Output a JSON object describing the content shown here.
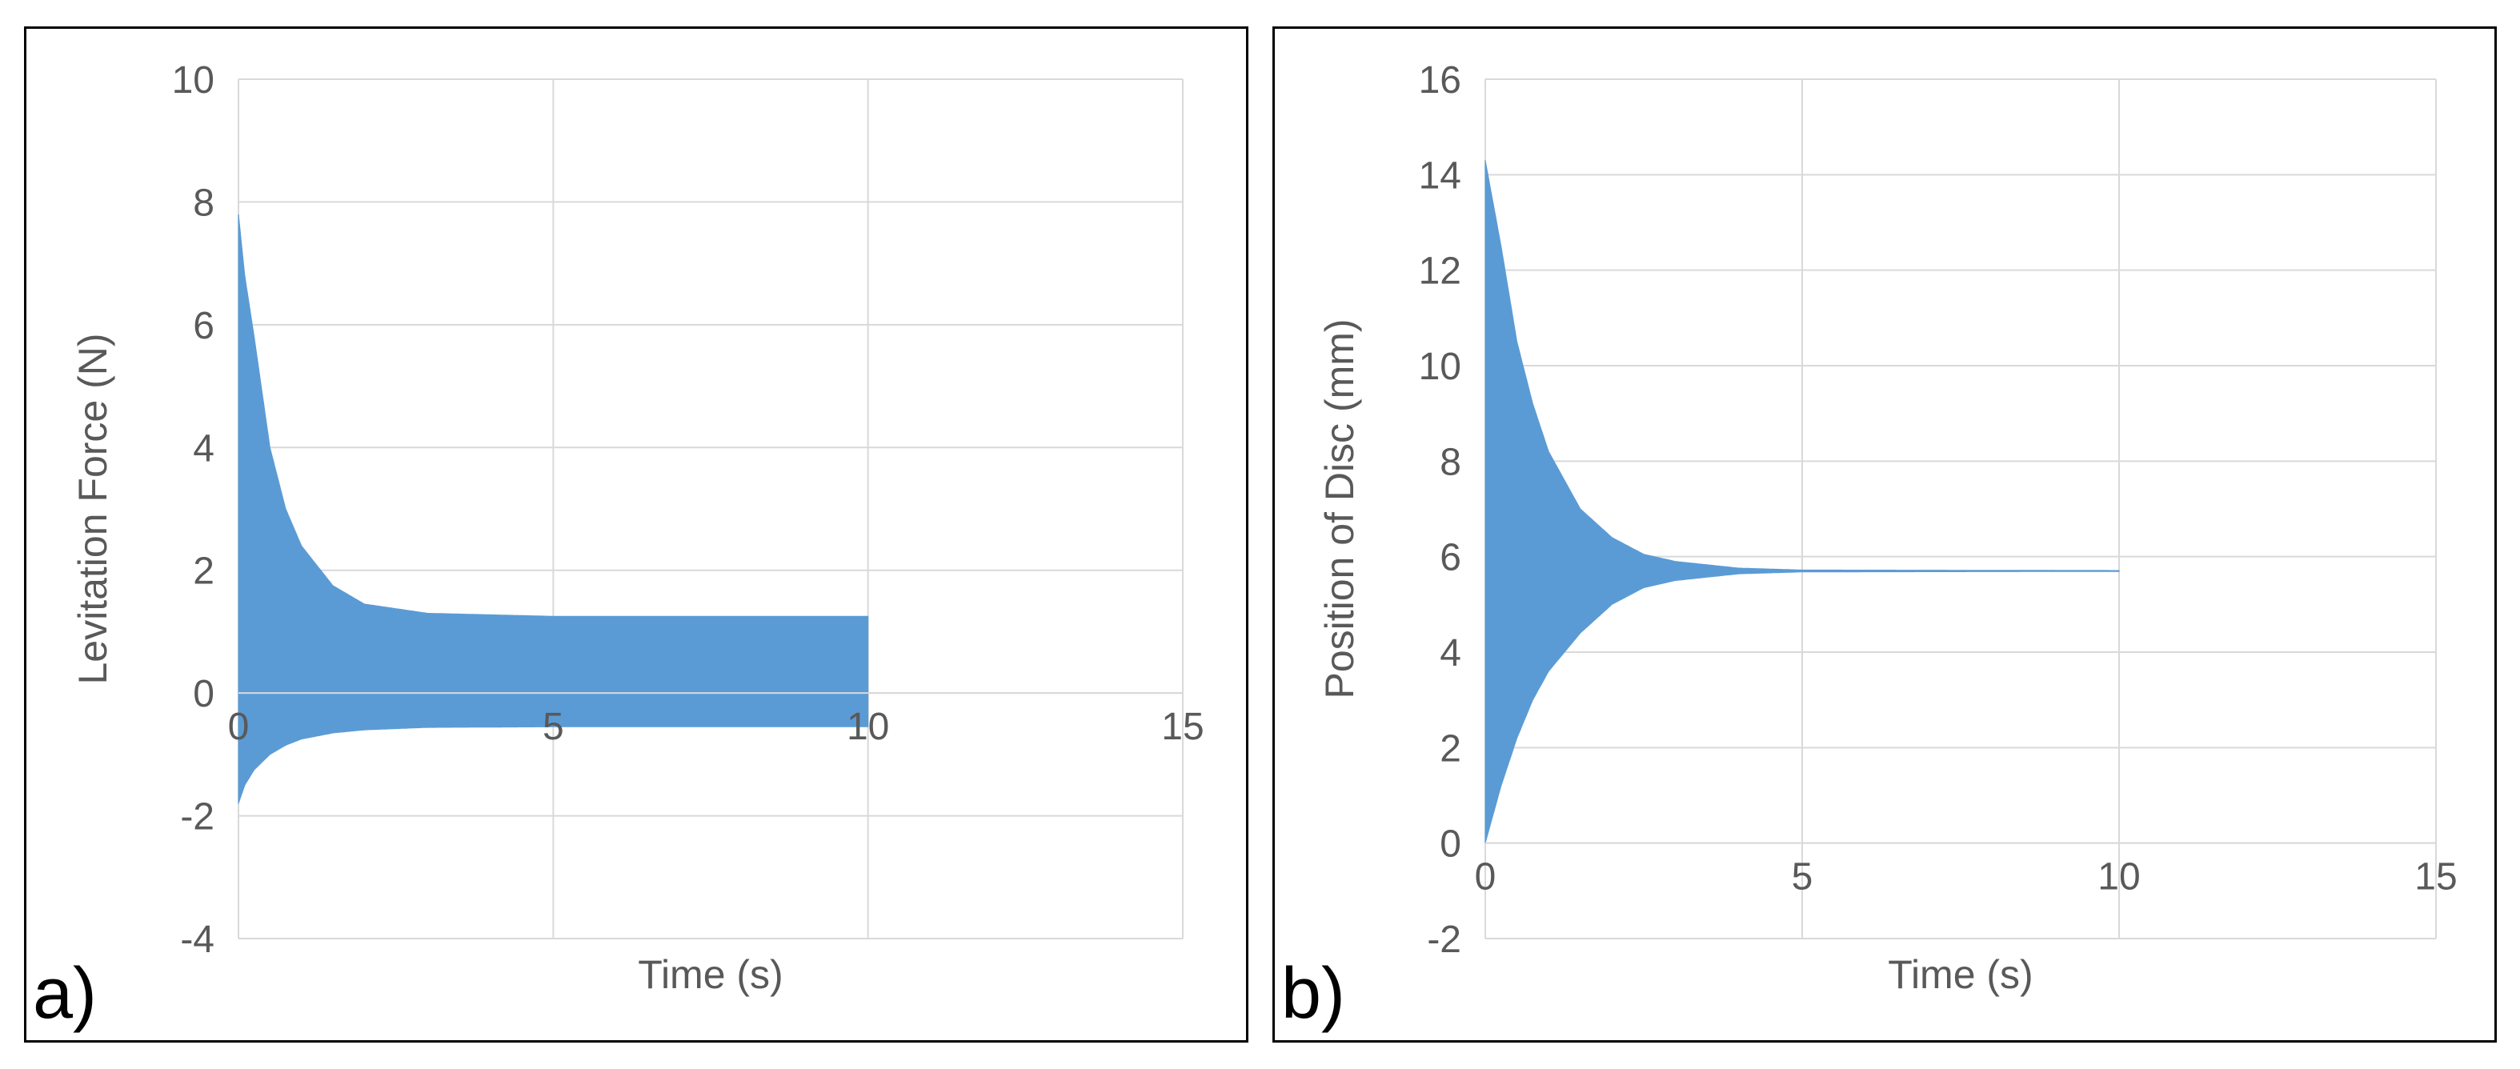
{
  "chart_data": [
    {
      "type": "area",
      "panel_label": "a)",
      "xlabel": "Time (s)",
      "ylabel": "Levitation Force (N)",
      "xlim": [
        0,
        15
      ],
      "ylim": [
        -4,
        10
      ],
      "xticks": [
        "0",
        "5",
        "10",
        "15"
      ],
      "yticks": [
        "-4",
        "-2",
        "0",
        "2",
        "4",
        "6",
        "8",
        "10"
      ],
      "grid": true,
      "series": [
        {
          "name": "Levitation Force",
          "color": "#5b9bd5",
          "x_end": 10,
          "steady_upper": 1.25,
          "steady_lower": -0.55,
          "envelope": [
            {
              "t": 0.0,
              "upper": 7.8,
              "lower": -1.8
            },
            {
              "t": 0.1,
              "upper": 6.8,
              "lower": -1.5
            },
            {
              "t": 0.25,
              "upper": 5.8,
              "lower": -1.25
            },
            {
              "t": 0.5,
              "upper": 4.0,
              "lower": -1.0
            },
            {
              "t": 0.75,
              "upper": 3.0,
              "lower": -0.85
            },
            {
              "t": 1.0,
              "upper": 2.4,
              "lower": -0.75
            },
            {
              "t": 1.5,
              "upper": 1.75,
              "lower": -0.65
            },
            {
              "t": 2.0,
              "upper": 1.45,
              "lower": -0.6
            },
            {
              "t": 3.0,
              "upper": 1.3,
              "lower": -0.56
            },
            {
              "t": 5.0,
              "upper": 1.25,
              "lower": -0.55
            },
            {
              "t": 10.0,
              "upper": 1.25,
              "lower": -0.55
            }
          ]
        }
      ]
    },
    {
      "type": "area",
      "panel_label": "b)",
      "xlabel": "Time (s)",
      "ylabel": "Position of Disc (mm)",
      "xlim": [
        0,
        15
      ],
      "ylim": [
        -2,
        16
      ],
      "xticks": [
        "0",
        "5",
        "10",
        "15"
      ],
      "yticks": [
        "-2",
        "0",
        "2",
        "4",
        "6",
        "8",
        "10",
        "12",
        "14",
        "16"
      ],
      "grid": true,
      "series": [
        {
          "name": "Position of Disc",
          "color": "#5b9bd5",
          "x_end": 10,
          "steady_value": 5.7,
          "envelope": [
            {
              "t": 0.0,
              "upper": 14.3,
              "lower": 0.0
            },
            {
              "t": 0.25,
              "upper": 12.5,
              "lower": 1.2
            },
            {
              "t": 0.5,
              "upper": 10.5,
              "lower": 2.2
            },
            {
              "t": 0.75,
              "upper": 9.2,
              "lower": 3.0
            },
            {
              "t": 1.0,
              "upper": 8.2,
              "lower": 3.6
            },
            {
              "t": 1.5,
              "upper": 7.0,
              "lower": 4.4
            },
            {
              "t": 2.0,
              "upper": 6.4,
              "lower": 5.0
            },
            {
              "t": 2.5,
              "upper": 6.05,
              "lower": 5.35
            },
            {
              "t": 3.0,
              "upper": 5.9,
              "lower": 5.5
            },
            {
              "t": 4.0,
              "upper": 5.76,
              "lower": 5.64
            },
            {
              "t": 5.0,
              "upper": 5.72,
              "lower": 5.68
            },
            {
              "t": 10.0,
              "upper": 5.71,
              "lower": 5.69
            }
          ]
        }
      ]
    }
  ]
}
